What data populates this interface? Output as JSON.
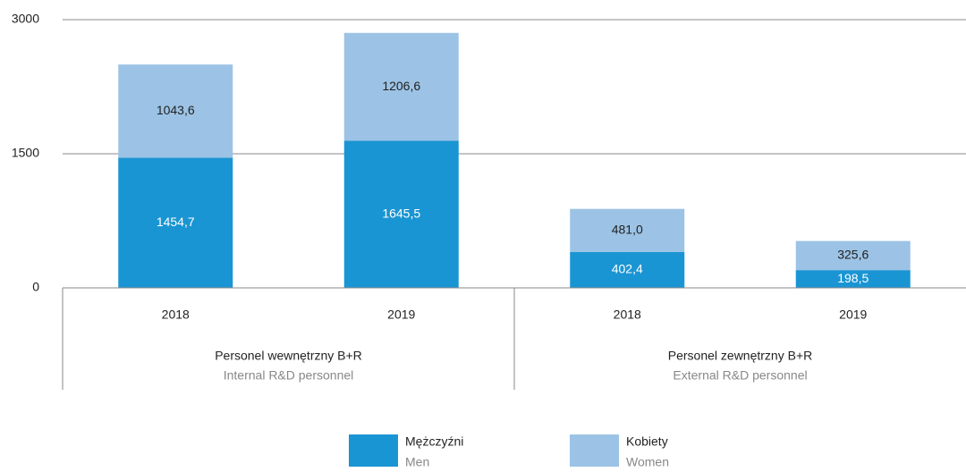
{
  "chart_data": {
    "type": "stacked_bar",
    "groups": [
      {
        "label": "Personel wewnętrzny B+R",
        "sublabel": "Internal R&D personnel",
        "categories": [
          "2018",
          "2019"
        ]
      },
      {
        "label": "Personel zewnętrzny B+R",
        "sublabel": "External R&D personnel",
        "categories": [
          "2018",
          "2019"
        ]
      }
    ],
    "series": [
      {
        "name": "Mężczyźni",
        "name_en": "Men",
        "color": "#1a95d3",
        "label_color": "#ffffff",
        "values": [
          1454.7,
          1645.5,
          402.4,
          198.5
        ],
        "value_labels": [
          "1454,7",
          "1645,5",
          "402,4",
          "198,5"
        ]
      },
      {
        "name": "Kobiety",
        "name_en": "Women",
        "color": "#9cc3e5",
        "label_color": "#222222",
        "values": [
          1043.6,
          1206.6,
          481.0,
          325.6
        ],
        "value_labels": [
          "1043,6",
          "1206,6",
          "481,0",
          "325,6"
        ]
      }
    ],
    "ylim": [
      0,
      3000
    ],
    "yticks": [
      0,
      1500,
      3000
    ],
    "grid": true
  }
}
